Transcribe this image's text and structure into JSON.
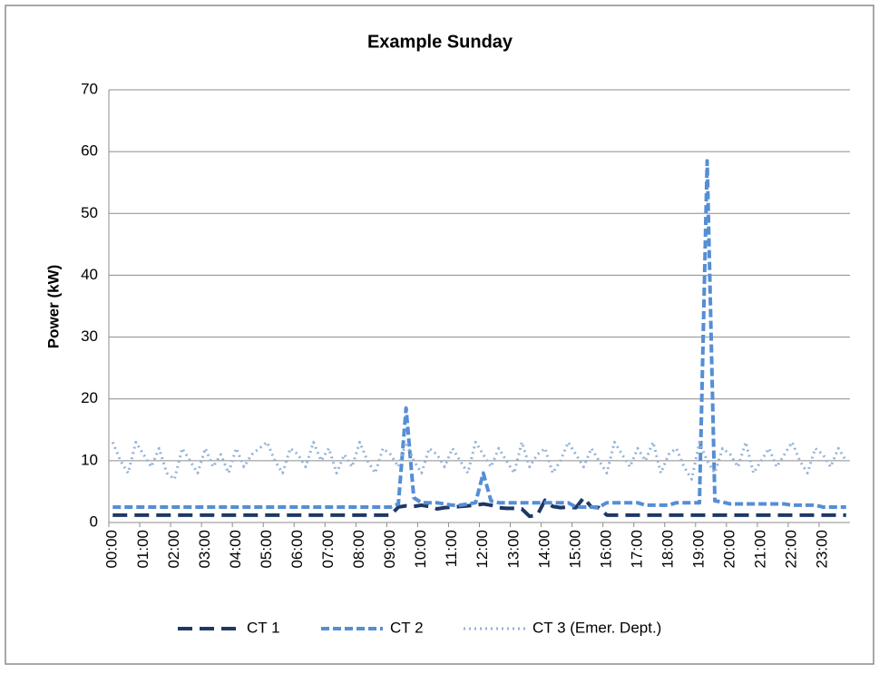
{
  "chart_data": {
    "type": "line",
    "title": "Example Sunday",
    "y_label": "Power (kW)",
    "categories": [
      "00:00",
      null,
      null,
      null,
      "01:00",
      null,
      null,
      null,
      "02:00",
      null,
      null,
      null,
      "03:00",
      null,
      null,
      null,
      "04:00",
      null,
      null,
      null,
      "05:00",
      null,
      null,
      null,
      "06:00",
      null,
      null,
      null,
      "07:00",
      null,
      null,
      null,
      "08:00",
      null,
      null,
      null,
      "09:00",
      null,
      null,
      null,
      "10:00",
      null,
      null,
      null,
      "11:00",
      null,
      null,
      null,
      "12:00",
      null,
      null,
      null,
      "13:00",
      null,
      null,
      null,
      "14:00",
      null,
      null,
      null,
      "15:00",
      null,
      null,
      null,
      "16:00",
      null,
      null,
      null,
      "17:00",
      null,
      null,
      null,
      "18:00",
      null,
      null,
      null,
      "19:00",
      null,
      null,
      null,
      "20:00",
      null,
      null,
      null,
      "21:00",
      null,
      null,
      null,
      "22:00",
      null,
      null,
      null,
      "23:00",
      null,
      null,
      null
    ],
    "series": [
      {
        "name": "CT 1",
        "color": "#1f3864",
        "values": [
          1.2,
          1.2,
          1.2,
          1.2,
          1.2,
          1.2,
          1.2,
          1.2,
          1.2,
          1.2,
          1.2,
          1.2,
          1.2,
          1.2,
          1.2,
          1.2,
          1.2,
          1.2,
          1.2,
          1.2,
          1.2,
          1.2,
          1.2,
          1.2,
          1.2,
          1.2,
          1.2,
          1.2,
          1.2,
          1.2,
          1.2,
          1.2,
          1.2,
          1.2,
          1.2,
          1.2,
          1.2,
          2.5,
          2.7,
          2.6,
          2.8,
          2.6,
          2.2,
          2.4,
          2.5,
          2.6,
          2.7,
          2.8,
          3.0,
          2.8,
          2.4,
          2.3,
          2.3,
          2.2,
          1.0,
          1.2,
          3.6,
          2.6,
          2.4,
          2.5,
          2.4,
          4.0,
          2.5,
          2.4,
          1.2,
          1.2,
          1.2,
          1.2,
          1.2,
          1.2,
          1.2,
          1.2,
          1.2,
          1.2,
          1.2,
          1.2,
          1.2,
          1.2,
          1.2,
          1.2,
          1.2,
          1.2,
          1.2,
          1.2,
          1.2,
          1.2,
          1.2,
          1.2,
          1.2,
          1.2,
          1.2,
          1.2,
          1.2,
          1.2,
          1.2,
          1.2
        ]
      },
      {
        "name": "CT 2",
        "color": "#558ed5",
        "values": [
          2.5,
          2.5,
          2.5,
          2.5,
          2.5,
          2.5,
          2.5,
          2.5,
          2.5,
          2.5,
          2.5,
          2.5,
          2.5,
          2.5,
          2.5,
          2.5,
          2.5,
          2.5,
          2.5,
          2.5,
          2.5,
          2.5,
          2.5,
          2.5,
          2.5,
          2.5,
          2.5,
          2.5,
          2.5,
          2.5,
          2.5,
          2.5,
          2.5,
          2.5,
          2.5,
          2.5,
          2.5,
          3,
          18.5,
          4,
          3.2,
          3.2,
          3.2,
          3.0,
          2.8,
          2.8,
          3.0,
          3.2,
          8,
          3.5,
          3.2,
          3.2,
          3.2,
          3.2,
          3.2,
          3.2,
          3.2,
          3.2,
          3.2,
          3.2,
          2.5,
          2.5,
          2.5,
          2.5,
          3.2,
          3.2,
          3.2,
          3.2,
          3.2,
          2.8,
          2.8,
          2.8,
          2.8,
          3.2,
          3.2,
          3.2,
          3.2,
          58.5,
          3.5,
          3.3,
          3.0,
          3.0,
          3.0,
          3.0,
          3.0,
          3.0,
          3.0,
          3.0,
          2.8,
          2.8,
          2.8,
          2.8,
          2.5,
          2.5,
          2.5,
          2.5
        ]
      },
      {
        "name": "CT 3 (Emer. Dept.)",
        "color": "#95b3d7",
        "values": [
          13,
          10,
          8,
          13,
          11,
          9,
          12,
          8,
          7,
          12,
          10,
          8,
          12,
          9,
          11,
          8,
          12,
          9,
          11,
          12,
          13,
          10,
          8,
          12,
          11,
          9,
          13,
          10,
          12,
          8,
          11,
          9,
          13,
          10,
          8,
          12,
          11,
          9,
          13,
          10,
          8,
          12,
          11,
          9,
          12,
          10,
          8,
          13,
          11,
          9,
          12,
          10,
          8,
          13,
          9,
          11,
          12,
          8,
          10,
          13,
          11,
          9,
          12,
          10,
          8,
          13,
          11,
          9,
          12,
          10,
          13,
          8,
          11,
          12,
          9,
          7,
          13,
          10,
          8,
          12,
          11,
          9,
          13,
          8,
          10,
          12,
          9,
          11,
          13,
          10,
          8,
          12,
          11,
          9,
          12,
          10
        ]
      }
    ],
    "ylim": [
      0,
      70
    ],
    "yticks": [
      0,
      10,
      20,
      30,
      40,
      50,
      60,
      70
    ],
    "grid": true,
    "legend": "bottom"
  }
}
